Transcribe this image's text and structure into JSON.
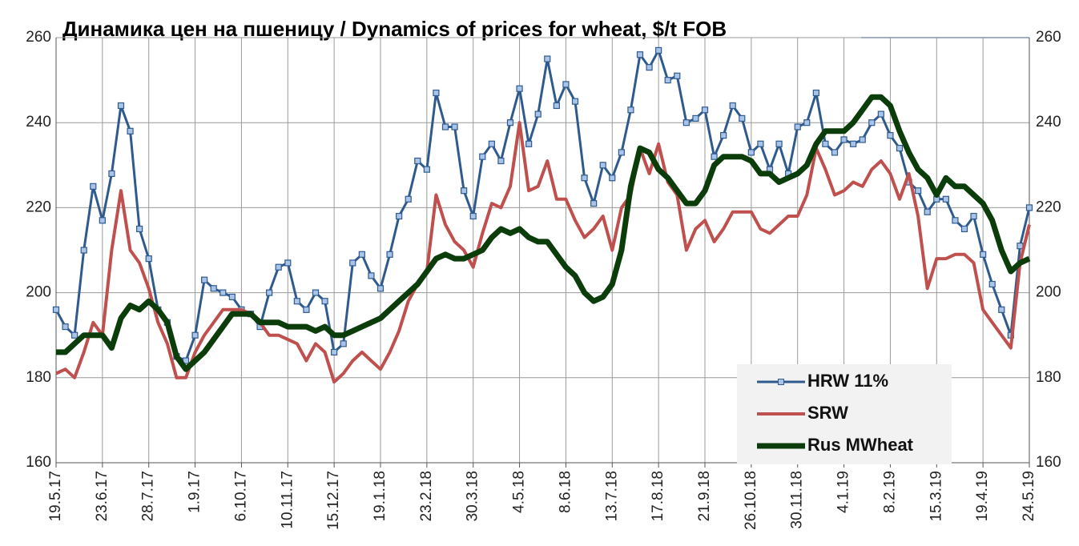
{
  "chart_data": {
    "type": "line",
    "title": "Динамика цен на пшеницу / Dynamics of prices for wheat, $/t FOB",
    "categories": [
      "19.5.17",
      null,
      null,
      null,
      null,
      "23.6.17",
      null,
      null,
      null,
      null,
      "28.7.17",
      null,
      null,
      null,
      null,
      "1.9.17",
      null,
      null,
      null,
      null,
      "6.10.17",
      null,
      null,
      null,
      null,
      "10.11.17",
      null,
      null,
      null,
      null,
      "15.12.17",
      null,
      null,
      null,
      null,
      "19.1.18",
      null,
      null,
      null,
      null,
      "23.2.18",
      null,
      null,
      null,
      null,
      "30.3.18",
      null,
      null,
      null,
      null,
      "4.5.18",
      null,
      null,
      null,
      null,
      "8.6.18",
      null,
      null,
      null,
      null,
      "13.7.18",
      null,
      null,
      null,
      null,
      "17.8.18",
      null,
      null,
      null,
      null,
      "21.9.18",
      null,
      null,
      null,
      null,
      "26.10.18",
      null,
      null,
      null,
      null,
      "30.11.18",
      null,
      null,
      null,
      null,
      "4.1.19",
      null,
      null,
      null,
      null,
      "8.2.19",
      null,
      null,
      null,
      null,
      "15.3.19",
      null,
      null,
      null,
      null,
      "19.4.19",
      null,
      null,
      null,
      null,
      "24.5.19"
    ],
    "series": [
      {
        "name": "HRW 11%",
        "color": "#2e5a8e",
        "values": [
          196,
          192,
          190,
          210,
          225,
          217,
          228,
          244,
          238,
          215,
          208,
          196,
          193,
          185,
          184,
          190,
          203,
          201,
          200,
          199,
          196,
          195,
          192,
          200,
          206,
          207,
          198,
          196,
          200,
          198,
          186,
          188,
          207,
          209,
          204,
          201,
          209,
          218,
          222,
          231,
          229,
          247,
          239,
          239,
          224,
          218,
          232,
          235,
          231,
          240,
          248,
          235,
          242,
          255,
          244,
          249,
          245,
          227,
          221,
          230,
          227,
          233,
          243,
          256,
          253,
          257,
          250,
          251,
          240,
          241,
          243,
          232,
          237,
          244,
          241,
          233,
          235,
          229,
          235,
          228,
          239,
          240,
          247,
          235,
          233,
          236,
          235,
          236,
          240,
          242,
          237,
          234,
          226,
          224,
          219,
          222,
          222,
          217,
          215,
          218,
          209,
          202,
          196,
          190,
          211,
          220
        ]
      },
      {
        "name": "SRW",
        "color": "#c0504d",
        "values": [
          181,
          182,
          180,
          186,
          193,
          190,
          210,
          224,
          210,
          207,
          201,
          193,
          188,
          180,
          180,
          186,
          190,
          193,
          196,
          196,
          196,
          195,
          193,
          190,
          190,
          189,
          188,
          184,
          188,
          186,
          179,
          181,
          184,
          186,
          184,
          182,
          186,
          191,
          198,
          202,
          205,
          223,
          216,
          212,
          210,
          206,
          214,
          221,
          220,
          225,
          240,
          224,
          225,
          231,
          222,
          222,
          217,
          213,
          215,
          218,
          210,
          220,
          223,
          234,
          228,
          235,
          226,
          223,
          210,
          215,
          217,
          212,
          215,
          219,
          219,
          219,
          215,
          214,
          216,
          218,
          218,
          223,
          234,
          229,
          223,
          224,
          226,
          225,
          229,
          231,
          228,
          222,
          228,
          218,
          201,
          208,
          208,
          209,
          209,
          207,
          196,
          193,
          190,
          187,
          207,
          216
        ]
      },
      {
        "name": "Rus MWheat",
        "color": "#0b3d0b",
        "values": [
          186,
          186,
          188,
          190,
          190,
          190,
          187,
          194,
          197,
          196,
          198,
          196,
          193,
          185,
          182,
          184,
          186,
          189,
          192,
          195,
          195,
          195,
          193,
          193,
          193,
          192,
          192,
          192,
          191,
          192,
          190,
          190,
          191,
          192,
          193,
          194,
          196,
          198,
          200,
          202,
          205,
          208,
          209,
          208,
          208,
          209,
          210,
          213,
          215,
          214,
          215,
          213,
          212,
          212,
          209,
          206,
          204,
          200,
          198,
          199,
          202,
          210,
          225,
          234,
          233,
          229,
          227,
          224,
          221,
          221,
          224,
          230,
          232,
          232,
          232,
          231,
          228,
          228,
          226,
          227,
          228,
          230,
          235,
          238,
          238,
          238,
          240,
          243,
          246,
          246,
          244,
          238,
          233,
          229,
          227,
          223,
          227,
          225,
          225,
          223,
          221,
          217,
          210,
          205,
          207,
          208
        ]
      }
    ],
    "ylim": [
      160,
      260
    ],
    "yticks": [
      160,
      180,
      200,
      220,
      240,
      260
    ],
    "grid": true
  }
}
